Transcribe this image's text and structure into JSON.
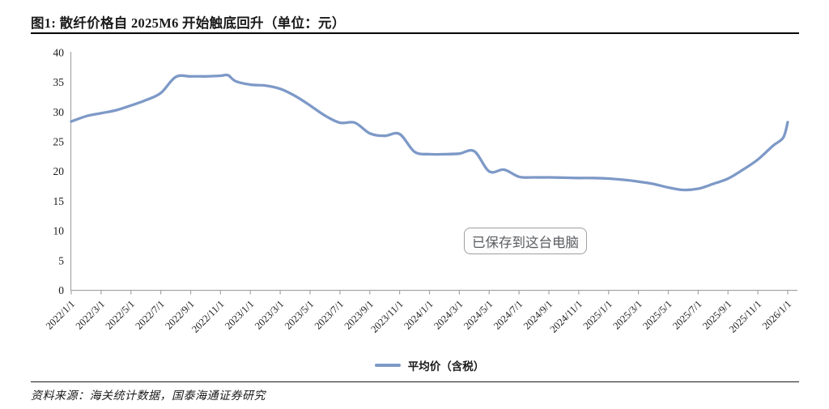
{
  "figure": {
    "title": "图1:  散纤价格自 2025M6 开始触底回升（单位：元）",
    "source": "资料来源：海关统计数据，国泰海通证券研究"
  },
  "toast": {
    "text": "已保存到这台电脑"
  },
  "legend": {
    "label": "平均价（含税）"
  },
  "colors": {
    "line": "#7d99c7",
    "axis": "#a6a6a6",
    "text": "#1a1a1a",
    "toast_border": "#9f9f9f",
    "toast_text": "#5a5d61"
  },
  "chart_data": {
    "type": "line",
    "title": "图1: 散纤价格自 2025M6 开始触底回升（单位：元）",
    "xlabel": "",
    "ylabel": "",
    "unit": "元",
    "ylim": [
      0,
      40
    ],
    "y_ticks": [
      0,
      5,
      10,
      15,
      20,
      25,
      30,
      35,
      40
    ],
    "grid": false,
    "legend_position": "bottom",
    "x_tick_month_step": 2,
    "x_tick_labels": [
      "2022/1/1",
      "2022/3/1",
      "2022/5/1",
      "2022/7/1",
      "2022/9/1",
      "2022/11/1",
      "2023/1/1",
      "2023/3/1",
      "2023/5/1",
      "2023/7/1",
      "2023/9/1",
      "2023/11/1",
      "2024/1/1",
      "2024/3/1",
      "2024/5/1",
      "2024/7/1",
      "2024/9/1",
      "2024/11/1",
      "2025/1/1",
      "2025/3/1",
      "2025/5/1",
      "2025/7/1",
      "2025/9/1",
      "2025/11/1",
      "2026/1/1"
    ],
    "series": [
      {
        "name": "平均价（含税）",
        "x_unit": "months_since_2022_01",
        "points": [
          [
            0,
            28.4
          ],
          [
            1,
            29.3
          ],
          [
            2,
            29.8
          ],
          [
            3,
            30.3
          ],
          [
            4,
            31.1
          ],
          [
            5,
            32.0
          ],
          [
            6,
            33.2
          ],
          [
            7,
            35.9
          ],
          [
            8,
            36.0
          ],
          [
            9,
            36.0
          ],
          [
            10,
            36.1
          ],
          [
            10.5,
            36.2
          ],
          [
            11,
            35.2
          ],
          [
            12,
            34.6
          ],
          [
            13,
            34.45
          ],
          [
            14,
            33.9
          ],
          [
            15,
            32.7
          ],
          [
            16,
            31.1
          ],
          [
            17,
            29.4
          ],
          [
            18,
            28.2
          ],
          [
            19,
            28.2
          ],
          [
            20,
            26.4
          ],
          [
            21,
            26.0
          ],
          [
            22,
            26.3
          ],
          [
            23,
            23.3
          ],
          [
            24,
            22.9
          ],
          [
            25,
            22.9
          ],
          [
            26,
            23.0
          ],
          [
            27,
            23.4
          ],
          [
            28,
            20.0
          ],
          [
            29,
            20.3
          ],
          [
            30,
            19.1
          ],
          [
            31,
            19.0
          ],
          [
            32,
            19.0
          ],
          [
            33,
            18.95
          ],
          [
            34,
            18.9
          ],
          [
            35,
            18.9
          ],
          [
            36,
            18.8
          ],
          [
            37,
            18.6
          ],
          [
            38,
            18.3
          ],
          [
            39,
            17.9
          ],
          [
            40,
            17.3
          ],
          [
            41,
            16.9
          ],
          [
            42,
            17.1
          ],
          [
            43,
            17.9
          ],
          [
            44,
            18.8
          ],
          [
            45,
            20.3
          ],
          [
            46,
            22.0
          ],
          [
            47,
            24.3
          ],
          [
            47.7,
            25.7
          ],
          [
            48,
            28.3
          ]
        ]
      }
    ]
  }
}
